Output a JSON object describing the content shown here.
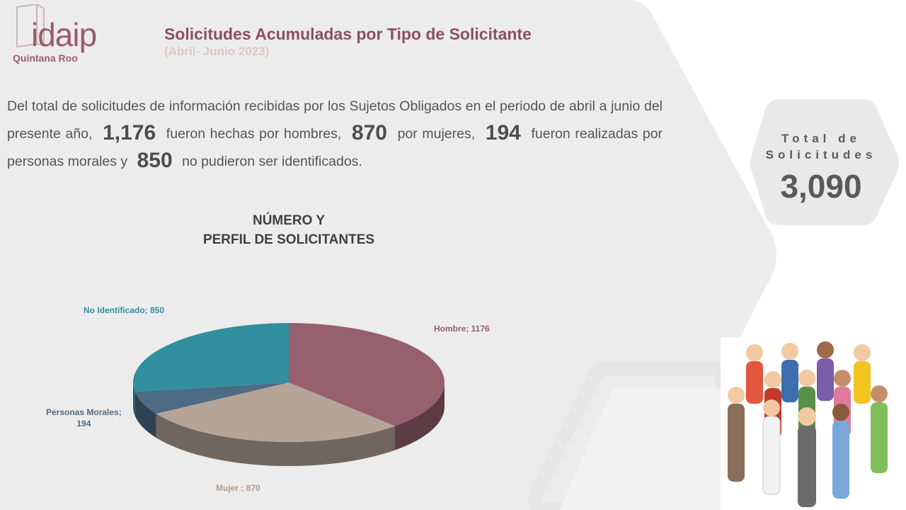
{
  "header": {
    "logo_text": "idaip",
    "logo_subtext": "Quintana Roo",
    "title": "Solicitudes  Acumuladas por Tipo de Solicitante",
    "subtitle": "(Abril- Junio 2023)"
  },
  "summary": {
    "part1": "Del total de solicitudes de información recibidas por los Sujetos Obligados en el periodo de abril a junio del presente año,",
    "hombres": "1,176",
    "part2": "fueron hechas por hombres,",
    "mujeres": "870",
    "part3": "por mujeres,",
    "morales": "194",
    "part4": "fueron realizadas por personas morales y",
    "no_identificados": "850",
    "part5": "no pudieron ser identificados."
  },
  "total": {
    "label_line1": "Total de",
    "label_line2": "Solicitudes",
    "value": "3,090"
  },
  "chart_data": {
    "type": "pie",
    "title_line1": "NÚMERO Y",
    "title_line2": "PERFIL DE SOLICITANTES",
    "slices": [
      {
        "name": "Hombre",
        "value": 1176,
        "label": "Hombre; 1176",
        "color": "#96606f"
      },
      {
        "name": "Mujer ",
        "value": 870,
        "label": "Mujer ; 870",
        "color": "#b6a496"
      },
      {
        "name": "Personas Morales",
        "value": 194,
        "label_line1": "Personas Morales;",
        "label_line2": "194",
        "color": "#4d6b85"
      },
      {
        "name": "No Identificado",
        "value": 850,
        "label": "No Identificado; 850",
        "color": "#318f9f"
      }
    ]
  },
  "illustration": {
    "icon": "group-of-people-icon"
  }
}
